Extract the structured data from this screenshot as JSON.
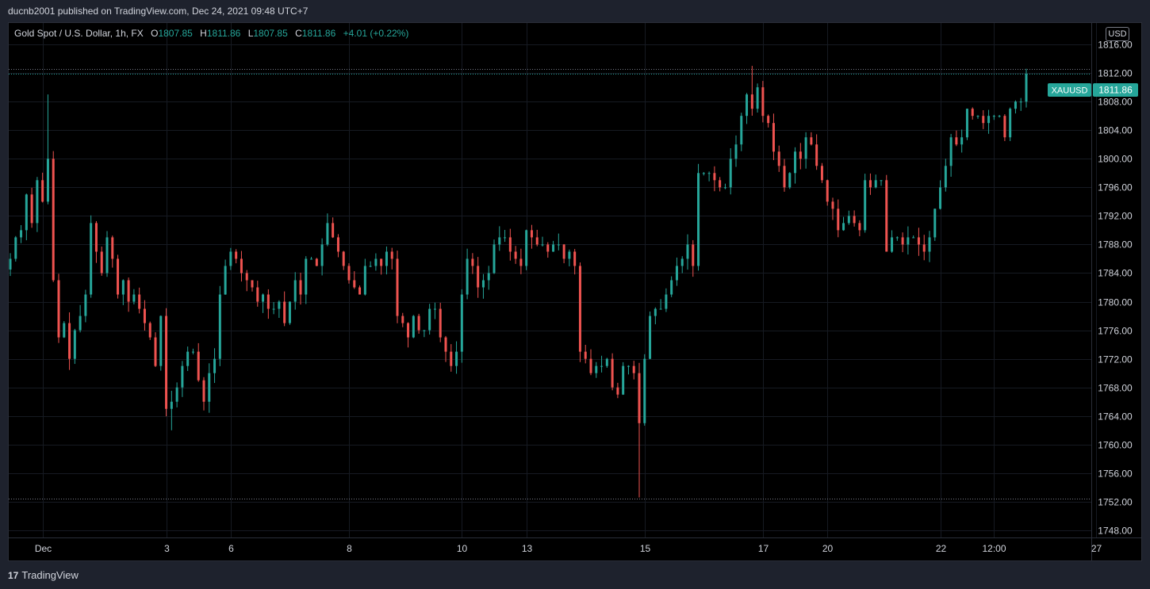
{
  "header": {
    "publisher_line": "ducnb2001 published on TradingView.com, Dec 24, 2021 09:48 UTC+7"
  },
  "legend": {
    "symbol": "Gold Spot / U.S. Dollar, 1h, FX",
    "open_label": "O",
    "open": "1807.85",
    "high_label": "H",
    "high": "1811.86",
    "low_label": "L",
    "low": "1807.85",
    "close_label": "C",
    "close": "1811.86",
    "change": "+4.01 (+0.22%)"
  },
  "price_scale": {
    "currency": "USD",
    "ticks": [
      "1816.00",
      "1812.00",
      "1808.00",
      "1804.00",
      "1800.00",
      "1796.00",
      "1792.00",
      "1788.00",
      "1784.00",
      "1780.00",
      "1776.00",
      "1772.00",
      "1768.00",
      "1764.00",
      "1760.00",
      "1756.00",
      "1752.00",
      "1748.00"
    ],
    "symbol_tag": "XAUUSD",
    "last_price": "1811.86"
  },
  "time_scale": {
    "ticks": [
      "Dec",
      "3",
      "6",
      "8",
      "10",
      "13",
      "15",
      "17",
      "20",
      "22",
      "12:00",
      "27"
    ]
  },
  "footer": {
    "logo_mark": "17",
    "logo_text": "TradingView"
  },
  "colors": {
    "up": "#26a69a",
    "down": "#ef5350",
    "background": "#000000",
    "grid": "#161a22",
    "last_price_tag": "#26a69a"
  },
  "chart_data": {
    "type": "candlestick",
    "title": "Gold Spot / U.S. Dollar, 1h, FX",
    "ylim": [
      1747,
      1819
    ],
    "grid": true,
    "high_line": 1812.6,
    "low_line": 1752.4,
    "last_price": 1811.86,
    "x_ticks": [
      {
        "label": "Dec",
        "bar": 6
      },
      {
        "label": "3",
        "bar": 29
      },
      {
        "label": "6",
        "bar": 41
      },
      {
        "label": "8",
        "bar": 63
      },
      {
        "label": "10",
        "bar": 84
      },
      {
        "label": "13",
        "bar": 96
      },
      {
        "label": "15",
        "bar": 118
      },
      {
        "label": "17",
        "bar": 140
      },
      {
        "label": "20",
        "bar": 152
      },
      {
        "label": "22",
        "bar": 173
      },
      {
        "label": "12:00",
        "bar": 183
      },
      {
        "label": "27",
        "bar": 202
      }
    ],
    "close": [
      1786,
      1789,
      1790,
      1795,
      1791,
      1797,
      1794,
      1800,
      1783,
      1775,
      1777,
      1772,
      1776,
      1778,
      1781,
      1791,
      1787,
      1784,
      1789,
      1786,
      1781,
      1783,
      1780,
      1781,
      1779,
      1777,
      1775,
      1771,
      1778,
      1765,
      1766,
      1768,
      1771,
      1773,
      1773,
      1769,
      1766,
      1770,
      1772,
      1781,
      1785,
      1787,
      1786,
      1784,
      1783,
      1782,
      1780,
      1781,
      1779,
      1779,
      1780,
      1777,
      1780,
      1783,
      1781,
      1786,
      1786,
      1785,
      1788,
      1791,
      1789,
      1787,
      1785,
      1783,
      1782,
      1781,
      1785,
      1785,
      1786,
      1785,
      1787,
      1786,
      1778,
      1777,
      1775,
      1778,
      1776,
      1776,
      1779,
      1779,
      1775,
      1773,
      1771,
      1773,
      1781,
      1786,
      1785,
      1782,
      1783,
      1784,
      1788,
      1789,
      1789,
      1787,
      1786,
      1785,
      1790,
      1789,
      1788,
      1788,
      1787,
      1788,
      1788,
      1786,
      1787,
      1785,
      1773,
      1772,
      1770,
      1771,
      1771,
      1772,
      1768,
      1767,
      1771,
      1771,
      1770,
      1763,
      1772,
      1778,
      1779,
      1779,
      1781,
      1783,
      1785,
      1786,
      1788,
      1785,
      1798,
      1798,
      1798,
      1797,
      1796,
      1796,
      1800,
      1802,
      1806,
      1809,
      1807,
      1810,
      1806,
      1805,
      1801,
      1799,
      1796,
      1798,
      1801,
      1800,
      1803,
      1802,
      1799,
      1797,
      1794,
      1793,
      1790,
      1791,
      1792,
      1791,
      1790,
      1797,
      1796,
      1797,
      1797,
      1787,
      1789,
      1789,
      1788,
      1789,
      1789,
      1788,
      1787,
      1789,
      1793,
      1796,
      1799,
      1803,
      1802,
      1803,
      1807,
      1806,
      1806,
      1805,
      1806,
      1806,
      1806,
      1803,
      1807,
      1808,
      1808,
      1811.86
    ]
  }
}
